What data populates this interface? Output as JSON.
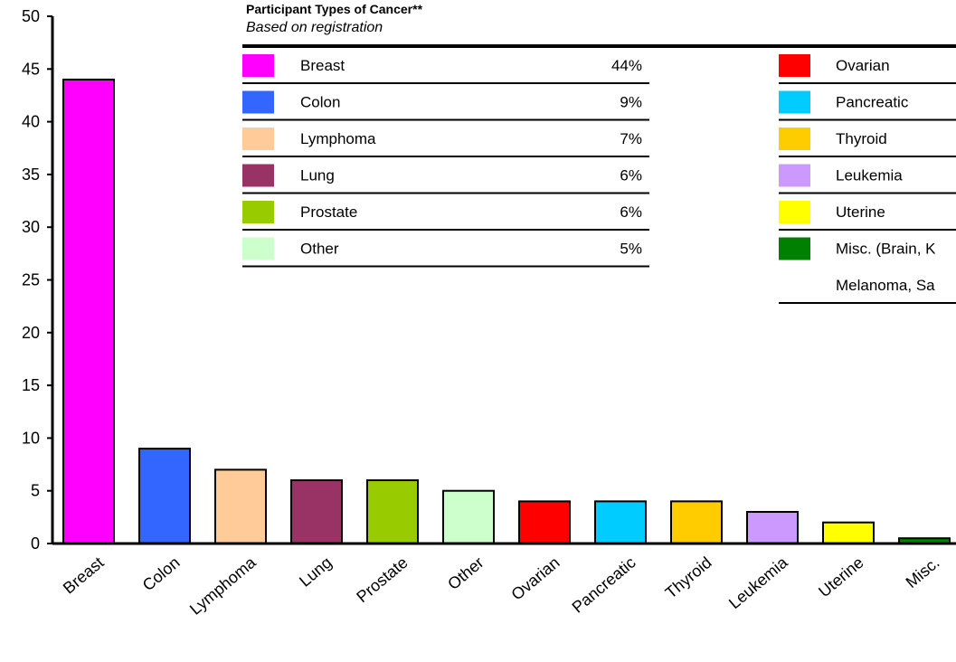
{
  "chart_data": {
    "type": "bar",
    "categories": [
      "Breast",
      "Colon",
      "Lymphoma",
      "Lung",
      "Prostate",
      "Other",
      "Ovarian",
      "Pancreatic",
      "Thyroid",
      "Leukemia",
      "Uterine",
      "Misc."
    ],
    "values": [
      44,
      9,
      7,
      6,
      6,
      5,
      4,
      4,
      4,
      3,
      2,
      0.5
    ],
    "colors": [
      "#ff00ff",
      "#3366ff",
      "#ffcc99",
      "#993366",
      "#99cc00",
      "#ccffcc",
      "#ff0000",
      "#00ccff",
      "#ffcc00",
      "#cc99ff",
      "#ffff00",
      "#008000"
    ],
    "ylim": [
      0,
      50
    ],
    "yticks": [
      0,
      5,
      10,
      15,
      20,
      25,
      30,
      35,
      40,
      45,
      50
    ],
    "grid": false,
    "legend": {
      "title": "Participant Types of Cancer**",
      "subtitle": "Based on registration",
      "left_entries": [
        {
          "label": "Breast",
          "percent": "44%",
          "color": "#ff00ff"
        },
        {
          "label": "Colon",
          "percent": "9%",
          "color": "#3366ff"
        },
        {
          "label": "Lymphoma",
          "percent": "7%",
          "color": "#ffcc99"
        },
        {
          "label": "Lung",
          "percent": "6%",
          "color": "#993366"
        },
        {
          "label": "Prostate",
          "percent": "6%",
          "color": "#99cc00"
        },
        {
          "label": "Other",
          "percent": "5%",
          "color": "#ccffcc"
        }
      ],
      "right_entries": [
        {
          "label": "Ovarian",
          "color": "#ff0000"
        },
        {
          "label": "Pancreatic",
          "color": "#00ccff"
        },
        {
          "label": "Thyroid",
          "color": "#ffcc00"
        },
        {
          "label": "Leukemia",
          "color": "#cc99ff"
        },
        {
          "label": "Uterine",
          "color": "#ffff00"
        },
        {
          "label": "Misc. (Brain, K",
          "color": "#008000"
        }
      ],
      "right_extra_line": "Melanoma, Sa"
    }
  }
}
